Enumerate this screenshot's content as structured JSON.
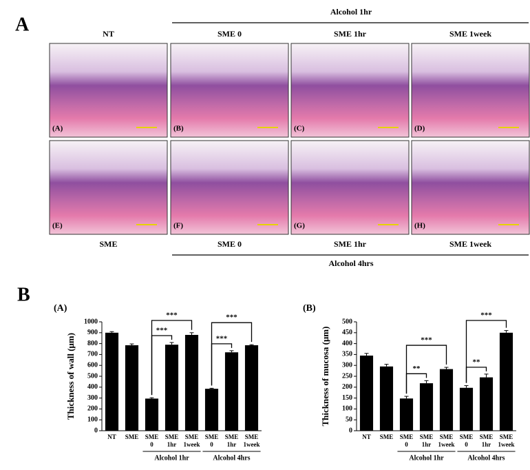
{
  "panel_a": {
    "label": "A",
    "top_group": "Alcohol 1hr",
    "top_headers": [
      "NT",
      "SME 0",
      "SME 1hr",
      "SME 1week"
    ],
    "images": [
      {
        "label": "(A)"
      },
      {
        "label": "(B)"
      },
      {
        "label": "(C)"
      },
      {
        "label": "(D)"
      },
      {
        "label": "(E)"
      },
      {
        "label": "(F)"
      },
      {
        "label": "(G)"
      },
      {
        "label": "(H)"
      }
    ],
    "bottom_headers": [
      "SME",
      "SME 0",
      "SME 1hr",
      "SME 1week"
    ],
    "bottom_group": "Alcohol 4hrs"
  },
  "panel_b_label": "B",
  "chart_data": [
    {
      "type": "bar",
      "title": "(A)",
      "y_label": "Thickness of wall (μm)",
      "categories": [
        "NT",
        "SME",
        "SME 0",
        "SME 1hr",
        "SME 1week",
        "SME 0",
        "SME 1hr",
        "SME 1week"
      ],
      "groups": [
        {
          "label": "Alcohol 1hr",
          "from": 2,
          "to": 4
        },
        {
          "label": "Alcohol 4hrs",
          "from": 5,
          "to": 7
        }
      ],
      "series": [
        {
          "color": "#000000",
          "values": [
            900,
            785,
            295,
            790,
            880,
            385,
            720,
            785
          ],
          "errors": [
            10,
            12,
            8,
            20,
            20,
            5,
            15,
            5
          ]
        }
      ],
      "ylim": [
        0,
        1000
      ],
      "yticks": [
        0,
        100,
        200,
        300,
        400,
        500,
        600,
        700,
        800,
        900,
        1000
      ],
      "significance": [
        {
          "label": "***",
          "from": 2,
          "to": 3
        },
        {
          "label": "***",
          "from": 2,
          "to": 4
        },
        {
          "label": "***",
          "from": 5,
          "to": 6
        },
        {
          "label": "***",
          "from": 5,
          "to": 7
        }
      ]
    },
    {
      "type": "bar",
      "title": "(B)",
      "y_label": "Thickness of mucosa (μm)",
      "categories": [
        "NT",
        "SME",
        "SME 0",
        "SME 1hr",
        "SME 1week",
        "SME 0",
        "SME 1hr",
        "SME 1week"
      ],
      "groups": [
        {
          "label": "Alcohol 1hr",
          "from": 2,
          "to": 4
        },
        {
          "label": "Alcohol 4hrs",
          "from": 5,
          "to": 7
        }
      ],
      "series": [
        {
          "color": "#000000",
          "values": [
            345,
            295,
            148,
            218,
            283,
            197,
            245,
            450
          ],
          "errors": [
            10,
            10,
            10,
            12,
            8,
            10,
            15,
            10
          ]
        }
      ],
      "ylim": [
        0,
        500
      ],
      "yticks": [
        0,
        50,
        100,
        150,
        200,
        250,
        300,
        350,
        400,
        450,
        500
      ],
      "significance": [
        {
          "label": "**",
          "from": 2,
          "to": 3
        },
        {
          "label": "***",
          "from": 2,
          "to": 4
        },
        {
          "label": "**",
          "from": 5,
          "to": 6
        },
        {
          "label": "***",
          "from": 5,
          "to": 7
        }
      ]
    }
  ]
}
